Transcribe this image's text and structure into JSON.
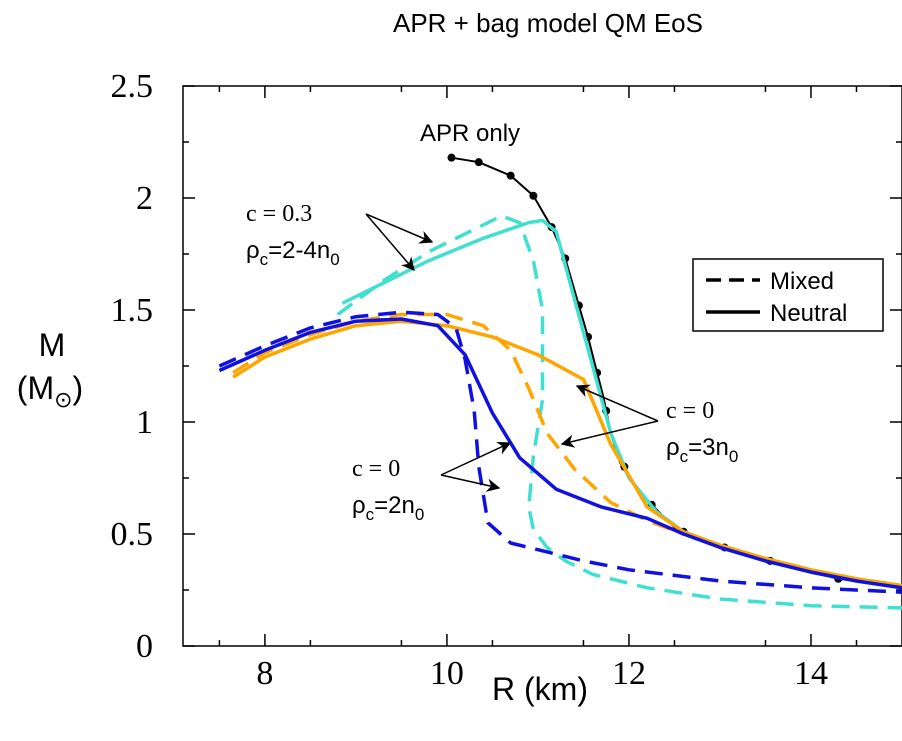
{
  "chart_data": {
    "type": "line",
    "title": "APR + bag model QM EoS",
    "xlabel": "R (km)",
    "ylabel_line1": "M",
    "ylabel_line2_base": "(M",
    "ylabel_line2_sub": "⊙",
    "ylabel_line2_end": ")",
    "xlim": [
      7.1,
      15.0
    ],
    "ylim": [
      0,
      2.5
    ],
    "xticks": [
      8,
      10,
      12,
      14
    ],
    "xtick_labels": [
      "8",
      "10",
      "12",
      "14"
    ],
    "yticks": [
      0,
      0.5,
      1,
      1.5,
      2,
      2.5
    ],
    "ytick_labels": [
      "0",
      "0.5",
      "1",
      "1.5",
      "2",
      "2.5"
    ],
    "grid": false,
    "legend": {
      "position": "right",
      "entries": [
        {
          "label": "Mixed",
          "style": "dashed"
        },
        {
          "label": "Neutral",
          "style": "solid"
        }
      ]
    },
    "colors": {
      "apr": "#000000",
      "cyan": "#40e0d0",
      "orange": "#ffa500",
      "blue": "#1010e0"
    },
    "series": [
      {
        "key": "apr",
        "color": "apr",
        "style": "solid",
        "markers": true,
        "x": [
          10.05,
          10.35,
          10.7,
          10.95,
          11.15,
          11.3,
          11.45,
          11.55,
          11.65,
          11.72,
          11.8,
          11.9,
          12.05,
          12.25,
          12.5,
          12.75,
          13.0,
          13.5,
          14.0,
          14.3,
          14.7,
          15.0
        ],
        "y": [
          2.18,
          2.16,
          2.1,
          2.01,
          1.87,
          1.73,
          1.52,
          1.38,
          1.22,
          1.11,
          0.95,
          0.82,
          0.72,
          0.63,
          0.53,
          0.48,
          0.44,
          0.38,
          0.33,
          0.3,
          0.28,
          0.27
        ],
        "marker_x": [
          10.05,
          10.35,
          10.7,
          10.95,
          11.15,
          11.3,
          11.45,
          11.55,
          11.65,
          11.75,
          11.95,
          12.25,
          12.6,
          13.05,
          13.55,
          14.3
        ],
        "marker_y": [
          2.18,
          2.16,
          2.1,
          2.01,
          1.87,
          1.73,
          1.52,
          1.38,
          1.22,
          1.05,
          0.8,
          0.63,
          0.51,
          0.44,
          0.38,
          0.3
        ]
      },
      {
        "key": "cyan_neutral",
        "color": "cyan",
        "style": "solid",
        "x": [
          8.85,
          9.3,
          9.8,
          10.4,
          10.9,
          11.05,
          11.2,
          11.4,
          11.6,
          11.8,
          12.0,
          12.3,
          12.6,
          13.0,
          13.5,
          14.0,
          14.5,
          15.0
        ],
        "y": [
          1.53,
          1.62,
          1.72,
          1.82,
          1.89,
          1.9,
          1.85,
          1.55,
          1.25,
          0.95,
          0.75,
          0.6,
          0.51,
          0.44,
          0.38,
          0.33,
          0.29,
          0.26
        ]
      },
      {
        "key": "cyan_mixed",
        "color": "cyan",
        "style": "dashed",
        "x": [
          8.8,
          9.3,
          9.8,
          10.3,
          10.6,
          10.8,
          10.95,
          11.05,
          11.05,
          10.95,
          10.9,
          10.95,
          11.1,
          11.3,
          11.6,
          12.2,
          13.0,
          14.0,
          15.0
        ],
        "y": [
          1.48,
          1.63,
          1.76,
          1.86,
          1.92,
          1.89,
          1.72,
          1.5,
          1.1,
          0.85,
          0.62,
          0.52,
          0.44,
          0.38,
          0.32,
          0.26,
          0.21,
          0.18,
          0.17
        ]
      },
      {
        "key": "orange_neutral",
        "color": "orange",
        "style": "solid",
        "x": [
          7.65,
          8.0,
          8.5,
          9.0,
          9.5,
          10.0,
          10.5,
          11.0,
          11.5,
          11.8,
          12.2,
          12.6,
          13.0,
          13.5,
          14.0,
          14.5,
          15.0
        ],
        "y": [
          1.2,
          1.29,
          1.37,
          1.43,
          1.45,
          1.43,
          1.38,
          1.3,
          1.19,
          0.9,
          0.62,
          0.51,
          0.45,
          0.39,
          0.34,
          0.3,
          0.27
        ]
      },
      {
        "key": "orange_mixed",
        "color": "orange",
        "style": "dashed",
        "x": [
          7.65,
          8.0,
          8.5,
          9.0,
          9.5,
          10.0,
          10.4,
          10.7,
          10.9,
          11.1,
          11.4,
          11.8,
          12.2,
          12.6,
          13.0,
          13.5,
          14.0,
          14.5,
          15.0
        ],
        "y": [
          1.22,
          1.31,
          1.39,
          1.45,
          1.48,
          1.48,
          1.43,
          1.32,
          1.15,
          0.95,
          0.79,
          0.64,
          0.56,
          0.5,
          0.45,
          0.39,
          0.34,
          0.3,
          0.27
        ]
      },
      {
        "key": "blue_neutral",
        "color": "blue",
        "style": "solid",
        "x": [
          7.5,
          8.0,
          8.5,
          9.0,
          9.5,
          9.9,
          10.2,
          10.5,
          10.8,
          11.2,
          11.7,
          12.2,
          12.6,
          13.0,
          13.5,
          14.0,
          14.5,
          15.0
        ],
        "y": [
          1.23,
          1.32,
          1.4,
          1.45,
          1.46,
          1.43,
          1.3,
          1.04,
          0.84,
          0.7,
          0.62,
          0.57,
          0.5,
          0.44,
          0.38,
          0.33,
          0.29,
          0.26
        ]
      },
      {
        "key": "blue_mixed",
        "color": "blue",
        "style": "dashed",
        "x": [
          7.5,
          8.0,
          8.5,
          9.0,
          9.5,
          9.9,
          10.1,
          10.2,
          10.3,
          10.35,
          10.45,
          10.7,
          11.0,
          11.5,
          12.0,
          13.0,
          14.0,
          15.0
        ],
        "y": [
          1.25,
          1.34,
          1.42,
          1.47,
          1.49,
          1.48,
          1.42,
          1.28,
          1.05,
          0.8,
          0.55,
          0.46,
          0.43,
          0.38,
          0.34,
          0.29,
          0.26,
          0.24
        ]
      }
    ],
    "annotations": [
      {
        "key": "apr_only",
        "text": "APR only"
      },
      {
        "key": "c03",
        "line1": "c = 0.3",
        "line2_base": "ρ",
        "line2_sub": "c",
        "line2_mid": "=2-4n",
        "line2_sub2": "0"
      },
      {
        "key": "c0_3n",
        "line1": "c = 0",
        "line2_base": "ρ",
        "line2_sub": "c",
        "line2_mid": "=3n",
        "line2_sub2": "0"
      },
      {
        "key": "c0_2n",
        "line1": "c = 0",
        "line2_base": "ρ",
        "line2_sub": "c",
        "line2_mid": "=2n",
        "line2_sub2": "0"
      }
    ]
  }
}
